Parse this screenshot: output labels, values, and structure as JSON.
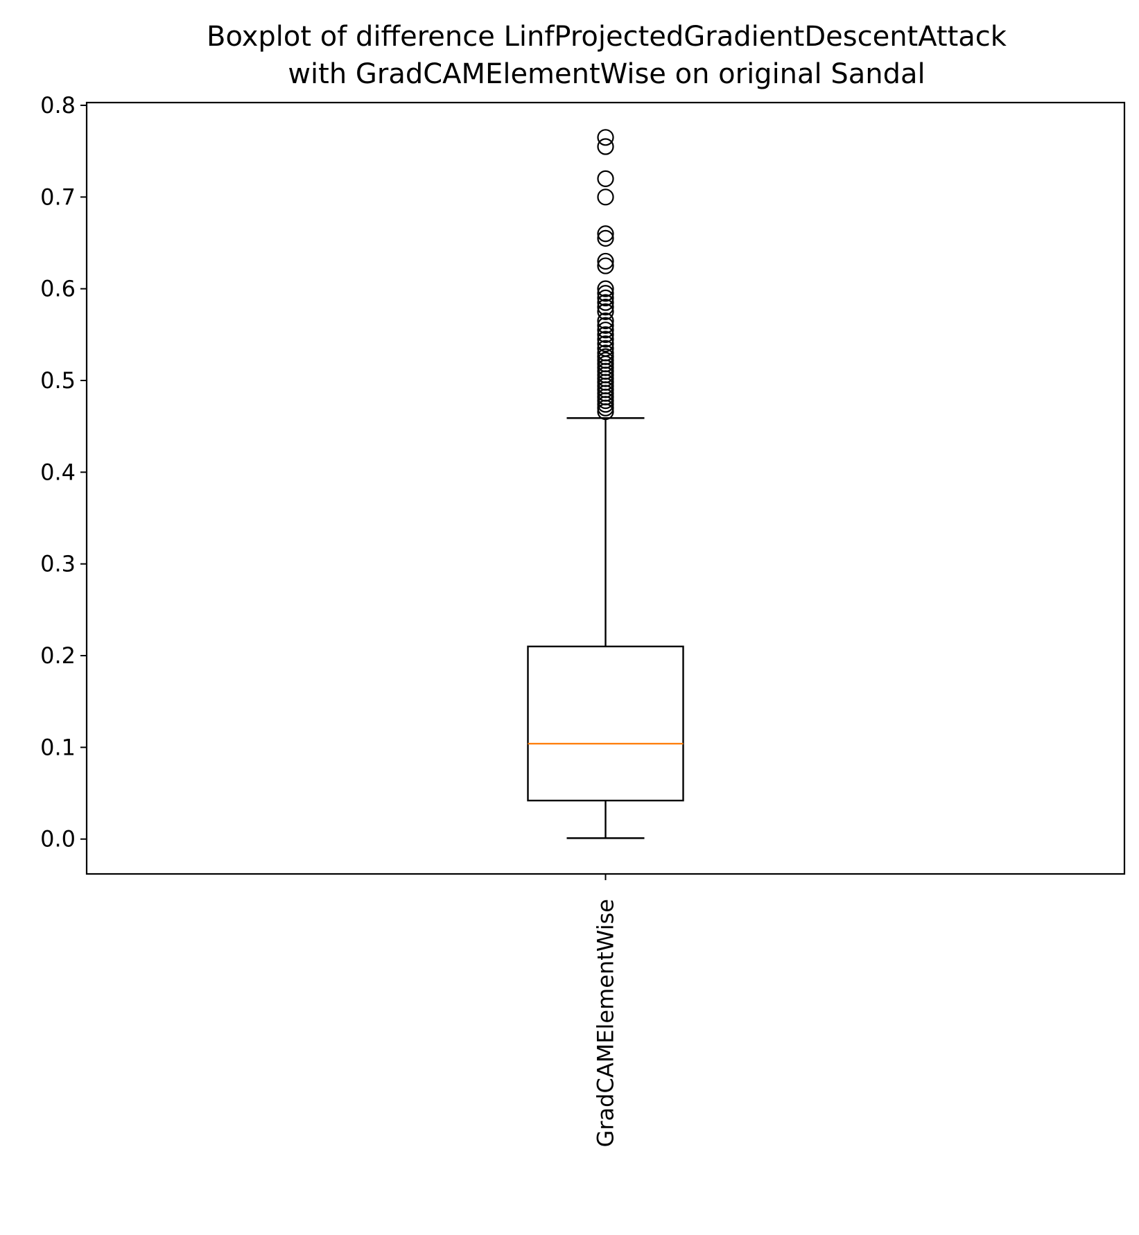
{
  "chart_data": {
    "type": "boxplot",
    "title_lines": [
      "Boxplot of difference LinfProjectedGradientDescentAttack",
      "with GradCAMElementWise on original Sandal"
    ],
    "xlabel": "",
    "ylabel": "",
    "categories": [
      "GradCAMElementWise"
    ],
    "ylim": [
      -0.038,
      0.803
    ],
    "yticks": [
      0.0,
      0.1,
      0.2,
      0.3,
      0.4,
      0.5,
      0.6,
      0.7,
      0.8
    ],
    "ytick_labels": [
      "0.0",
      "0.1",
      "0.2",
      "0.3",
      "0.4",
      "0.5",
      "0.6",
      "0.7",
      "0.8"
    ],
    "grid": false,
    "legend": "none",
    "colors": {
      "box": "#000000",
      "median": "#ff7f0e",
      "outlier": "#000000"
    },
    "boxes": [
      {
        "category": "GradCAMElementWise",
        "whisker_low": 0.001,
        "q1": 0.042,
        "median": 0.104,
        "q3": 0.21,
        "whisker_high": 0.459,
        "outliers": [
          0.466,
          0.47,
          0.474,
          0.478,
          0.482,
          0.486,
          0.49,
          0.494,
          0.498,
          0.502,
          0.506,
          0.51,
          0.514,
          0.518,
          0.522,
          0.526,
          0.53,
          0.535,
          0.54,
          0.545,
          0.55,
          0.555,
          0.56,
          0.565,
          0.575,
          0.58,
          0.585,
          0.59,
          0.595,
          0.6,
          0.625,
          0.63,
          0.655,
          0.66,
          0.7,
          0.72,
          0.755,
          0.765
        ]
      }
    ]
  }
}
